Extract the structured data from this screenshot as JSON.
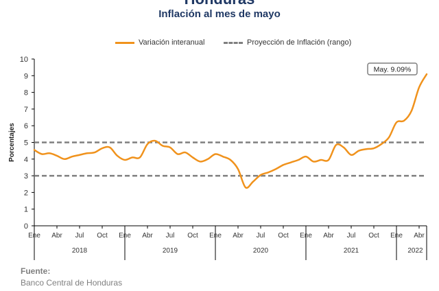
{
  "header": {
    "title": "Honduras",
    "subtitle": "Inflación al mes de mayo"
  },
  "legend": {
    "series_label": "Variación interanual",
    "band_label": "Proyección de Inflación (rango)"
  },
  "annotation": {
    "text": "May. 9.09%"
  },
  "source": {
    "label": "Fuente:",
    "value": "Banco Central de Honduras"
  },
  "colors": {
    "series": "#f0921c",
    "band": "#7f7f7f",
    "axis": "#000000"
  },
  "chart_data": {
    "type": "line",
    "title": "Inflación al mes de mayo",
    "xlabel": "",
    "ylabel": "Porcentajes",
    "ylim": [
      0,
      10
    ],
    "yticks": [
      0,
      1,
      2,
      3,
      4,
      5,
      6,
      7,
      8,
      9,
      10
    ],
    "grid": false,
    "legend_position": "top",
    "month_tick_labels": [
      "Ene",
      "Abr",
      "Jul",
      "Oct"
    ],
    "years": [
      "2018",
      "2019",
      "2020",
      "2021",
      "2022"
    ],
    "x_start": "2018-01",
    "x_end": "2022-05",
    "series": [
      {
        "name": "Variación interanual",
        "x": [
          "2018-01",
          "2018-02",
          "2018-03",
          "2018-04",
          "2018-05",
          "2018-06",
          "2018-07",
          "2018-08",
          "2018-09",
          "2018-10",
          "2018-11",
          "2018-12",
          "2019-01",
          "2019-02",
          "2019-03",
          "2019-04",
          "2019-05",
          "2019-06",
          "2019-07",
          "2019-08",
          "2019-09",
          "2019-10",
          "2019-11",
          "2019-12",
          "2020-01",
          "2020-02",
          "2020-03",
          "2020-04",
          "2020-05",
          "2020-06",
          "2020-07",
          "2020-08",
          "2020-09",
          "2020-10",
          "2020-11",
          "2020-12",
          "2021-01",
          "2021-02",
          "2021-03",
          "2021-04",
          "2021-05",
          "2021-06",
          "2021-07",
          "2021-08",
          "2021-09",
          "2021-10",
          "2021-11",
          "2021-12",
          "2022-01",
          "2022-02",
          "2022-03",
          "2022-04",
          "2022-05"
        ],
        "values": [
          4.55,
          4.3,
          4.35,
          4.2,
          4.0,
          4.15,
          4.25,
          4.35,
          4.4,
          4.65,
          4.7,
          4.2,
          3.95,
          4.1,
          4.1,
          4.9,
          5.1,
          4.8,
          4.7,
          4.3,
          4.4,
          4.1,
          3.85,
          4.0,
          4.3,
          4.15,
          3.95,
          3.4,
          2.3,
          2.65,
          3.05,
          3.2,
          3.4,
          3.65,
          3.8,
          3.95,
          4.15,
          3.85,
          3.95,
          3.95,
          4.85,
          4.7,
          4.25,
          4.5,
          4.6,
          4.65,
          4.9,
          5.3,
          6.2,
          6.3,
          6.9,
          8.3,
          9.09
        ]
      }
    ],
    "reference_lines": [
      {
        "name": "Proyección de Inflación (rango)",
        "y": 5
      },
      {
        "name": "Proyección de Inflación (rango)",
        "y": 3
      }
    ]
  }
}
